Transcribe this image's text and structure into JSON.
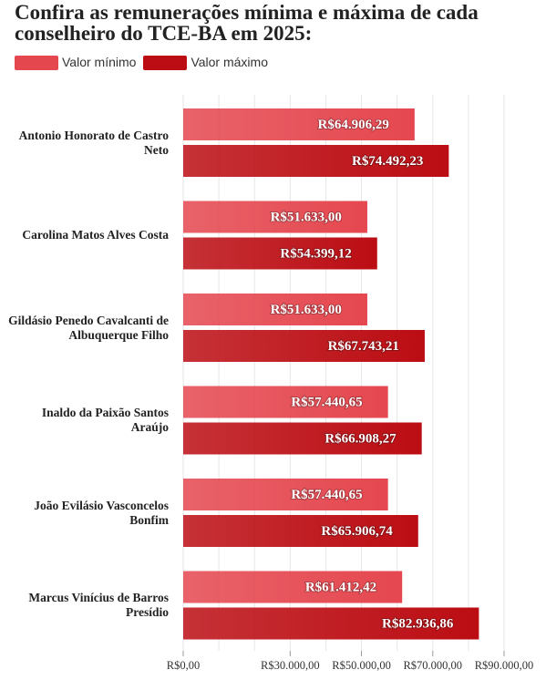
{
  "chart_data": {
    "type": "bar",
    "orientation": "horizontal",
    "title": "Confira as remunerações mínima e máxima de cada conselheiro do TCE-BA em 2025:",
    "categories": [
      "Antonio Honorato de Castro Neto",
      "Carolina Matos Alves Costa",
      "Gildásio Penedo Cavalcanti de Albuquerque Filho",
      "Inaldo da Paixão Santos Araújo",
      "João Evilásio Vasconcelos Bonfim",
      "Marcus Vinícius de Barros Presídio"
    ],
    "series": [
      {
        "name": "Valor mínimo",
        "color": "#e5474f",
        "values": [
          64906.29,
          51633.0,
          51633.0,
          57440.65,
          57440.65,
          61412.42
        ],
        "value_labels": [
          "R$64.906,29",
          "R$51.633,00",
          "R$51.633,00",
          "R$57.440,65",
          "R$57.440,65",
          "R$61.412,42"
        ]
      },
      {
        "name": "Valor máximo",
        "color": "#bb0d13",
        "values": [
          74492.23,
          54399.12,
          67743.21,
          66908.27,
          65906.74,
          82936.86
        ],
        "value_labels": [
          "R$74.492,23",
          "R$54.399,12",
          "R$67.743,21",
          "R$66.908,27",
          "R$65.906,74",
          "R$82.936,86"
        ]
      }
    ],
    "xlim": [
      0,
      90000
    ],
    "xticks": [
      {
        "value": 0,
        "label": "R$0,00"
      },
      {
        "value": 30000,
        "label": "R$30.000,00"
      },
      {
        "value": 50000,
        "label": "R$50.000,00"
      },
      {
        "value": 70000,
        "label": "R$70.000,00"
      },
      {
        "value": 90000,
        "label": "R$90.000,00"
      }
    ],
    "minor_xticks": [
      10000,
      20000,
      40000,
      60000,
      80000
    ],
    "grid": true
  }
}
